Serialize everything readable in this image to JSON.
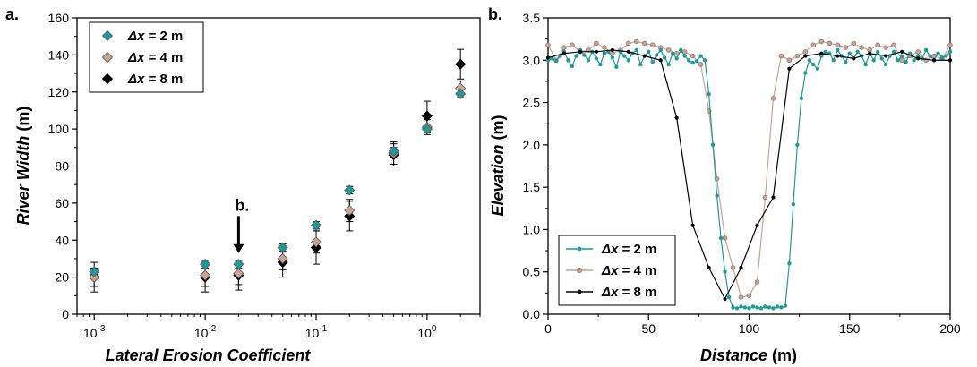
{
  "colors": {
    "dx2": "#1f9a9a",
    "dx4": "#c9a393",
    "dx8": "#000000",
    "axis": "#000000"
  },
  "chart_data": [
    {
      "type": "scatter",
      "panel_label": "a.",
      "xscale": "log",
      "xlabel": "Lateral Erosion Coefficient",
      "ylabel_italic": "River Width",
      "ylabel_unit": "(m)",
      "xlim": [
        0.0007,
        3
      ],
      "ylim": [
        0,
        160
      ],
      "xticks": [
        {
          "v": 0.001,
          "base": "10",
          "exp": "-3"
        },
        {
          "v": 0.01,
          "base": "10",
          "exp": "-2"
        },
        {
          "v": 0.1,
          "base": "10",
          "exp": "-1"
        },
        {
          "v": 1,
          "base": "10",
          "exp": "0"
        }
      ],
      "yticks": [
        0,
        20,
        40,
        60,
        80,
        100,
        120,
        140,
        160
      ],
      "series": [
        {
          "name_symbol": "Δx",
          "name_rest": " = 2 m",
          "color": "#1f9a9a",
          "x": [
            0.001,
            0.01,
            0.02,
            0.05,
            0.1,
            0.2,
            0.5,
            1,
            2
          ],
          "y": [
            23,
            27,
            27,
            36,
            48,
            67,
            88,
            100,
            119
          ],
          "err": [
            1.5,
            2,
            2,
            2,
            2,
            2,
            2,
            2,
            2
          ]
        },
        {
          "name_symbol": "Δx",
          "name_rest": " = 4 m",
          "color": "#c9a393",
          "x": [
            0.001,
            0.01,
            0.02,
            0.05,
            0.1,
            0.2,
            0.5,
            1,
            2
          ],
          "y": [
            20,
            21,
            22,
            30,
            39,
            56,
            87,
            101,
            122
          ],
          "err": [
            5,
            6,
            6,
            6,
            6,
            6,
            6,
            4,
            4
          ]
        },
        {
          "name_symbol": "Δx",
          "name_rest": " = 8 m",
          "color": "#000000",
          "x": [
            0.001,
            0.01,
            0.02,
            0.05,
            0.1,
            0.2,
            0.5,
            1,
            2
          ],
          "y": [
            20,
            20,
            21,
            28,
            36,
            53,
            86,
            107,
            135
          ],
          "err": [
            8,
            8,
            8,
            8,
            9,
            8,
            6,
            8,
            8
          ]
        }
      ],
      "annotation": {
        "text": "b.",
        "x": 0.02,
        "y_tip": 33,
        "y_tail": 53
      }
    },
    {
      "type": "line",
      "panel_label": "b.",
      "xlabel_italic": "Distance",
      "xlabel_unit": "(m)",
      "ylabel_italic": "Elevation",
      "ylabel_unit": "(m)",
      "xlim": [
        0,
        200
      ],
      "ylim": [
        0,
        3.5
      ],
      "xticks": [
        0,
        50,
        100,
        150,
        200
      ],
      "yticks": [
        "0.0",
        "0.5",
        "1.0",
        "1.5",
        "2.0",
        "2.5",
        "3.0",
        "3.5"
      ],
      "series": [
        {
          "name_symbol": "Δx",
          "name_rest": " = 2 m",
          "color": "#1f9a9a",
          "step": 2,
          "y": [
            3.0,
            3.02,
            2.99,
            3.05,
            3.1,
            3.0,
            2.93,
            3.05,
            3.12,
            3.06,
            3.0,
            3.1,
            3.02,
            2.95,
            3.08,
            3.1,
            3.03,
            2.92,
            3.1,
            3.05,
            3.0,
            3.08,
            3.12,
            2.95,
            3.05,
            3.1,
            2.98,
            3.06,
            3.12,
            3.03,
            2.95,
            3.08,
            3.02,
            3.12,
            3.05,
            3.0,
            2.97,
            2.99,
            3.05,
            3.0,
            2.6,
            2.0,
            1.4,
            0.9,
            0.5,
            0.2,
            0.08,
            0.07,
            0.09,
            0.08,
            0.07,
            0.09,
            0.08,
            0.07,
            0.09,
            0.08,
            0.07,
            0.09,
            0.08,
            0.1,
            0.6,
            1.3,
            2.0,
            2.55,
            2.85,
            3.0,
            2.95,
            2.9,
            3.05,
            3.1,
            3.08,
            3.0,
            3.12,
            3.05,
            2.98,
            3.08,
            3.02,
            3.1,
            3.05,
            2.95,
            3.08,
            3.0,
            3.1,
            3.02,
            2.95,
            3.05,
            3.1,
            3.0,
            3.05,
            2.98,
            3.08,
            3.0,
            3.05,
            3.02,
            3.12,
            3.05,
            3.0,
            3.08,
            3.03,
            3.05,
            3.1
          ]
        },
        {
          "name_symbol": "Δx",
          "name_rest": " = 4 m",
          "color": "#c9a393",
          "step": 4,
          "y": [
            3.18,
            3.0,
            3.15,
            3.18,
            3.1,
            3.12,
            3.2,
            3.15,
            3.08,
            3.12,
            3.2,
            3.22,
            3.2,
            3.18,
            3.15,
            3.12,
            3.08,
            3.1,
            3.05,
            2.95,
            2.4,
            1.6,
            0.9,
            0.55,
            0.2,
            0.22,
            0.38,
            1.38,
            2.55,
            3.05,
            3.0,
            3.05,
            3.1,
            3.18,
            3.22,
            3.2,
            3.18,
            3.15,
            3.2,
            3.15,
            3.12,
            3.18,
            3.15,
            3.18,
            3.0,
            3.05,
            3.1,
            3.0,
            3.05,
            3.02,
            3.18
          ]
        },
        {
          "name_symbol": "Δx",
          "name_rest": " = 8 m",
          "color": "#000000",
          "step": 8,
          "y": [
            3.03,
            3.08,
            3.1,
            3.1,
            3.12,
            3.1,
            3.05,
            3.0,
            2.32,
            1.05,
            0.55,
            0.18,
            0.55,
            1.05,
            1.38,
            2.9,
            3.05,
            3.08,
            3.05,
            3.02,
            3.08,
            3.05,
            3.1,
            3.02,
            3.0,
            3.0
          ]
        }
      ]
    }
  ]
}
